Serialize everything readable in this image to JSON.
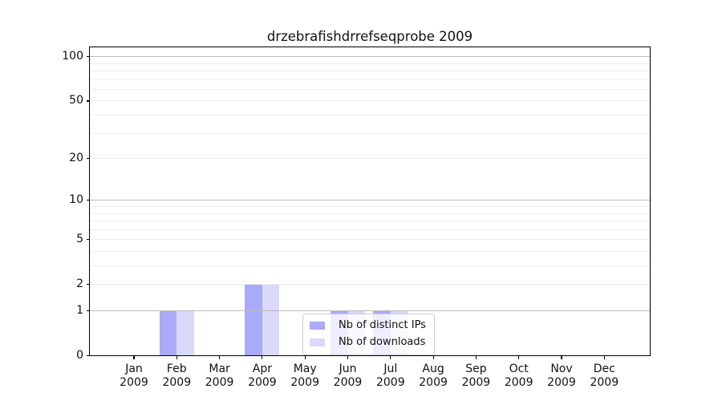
{
  "figure": {
    "background": "#ffffff",
    "axis_color": "#000000"
  },
  "chart_data": {
    "type": "bar",
    "title": "drzebrafishdrrefseqprobe 2009",
    "categories": [
      "Jan 2009",
      "Feb 2009",
      "Mar 2009",
      "Apr 2009",
      "May 2009",
      "Jun 2009",
      "Jul 2009",
      "Aug 2009",
      "Sep 2009",
      "Oct 2009",
      "Nov 2009",
      "Dec 2009"
    ],
    "series": [
      {
        "name": "Nb of distinct IPs",
        "color": "#aaaaf8",
        "values": [
          0,
          1,
          0,
          2,
          0,
          1,
          1,
          0,
          0,
          0,
          0,
          0
        ]
      },
      {
        "name": "Nb of downloads",
        "color": "#d9d9fa",
        "values": [
          0,
          1,
          0,
          2,
          0,
          1,
          1,
          0,
          0,
          0,
          0,
          0
        ]
      }
    ],
    "xlabel": "",
    "ylabel": "",
    "yscale": "log1p",
    "ylim": [
      0,
      115
    ],
    "yticks": [
      0,
      1,
      2,
      5,
      10,
      20,
      50,
      100
    ],
    "grid": {
      "major_values": [
        1,
        10,
        100
      ],
      "minor_values": [
        2,
        3,
        4,
        5,
        6,
        7,
        8,
        9,
        20,
        30,
        40,
        50,
        60,
        70,
        80,
        90
      ],
      "major_color": "#bdbdbd",
      "minor_color": "#ececec"
    },
    "legend": {
      "position": "lower-center-right",
      "background": "rgba(255,255,255,0.8)",
      "border_color": "#cccccc"
    }
  }
}
